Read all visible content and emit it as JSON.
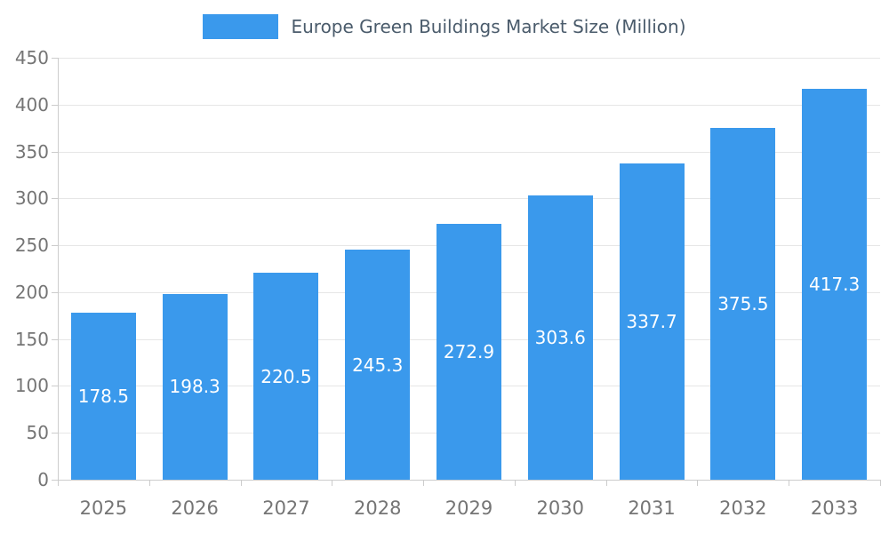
{
  "chart_data": {
    "type": "bar",
    "title": "Europe Green Buildings Market Size (Million)",
    "categories": [
      "2025",
      "2026",
      "2027",
      "2028",
      "2029",
      "2030",
      "2031",
      "2032",
      "2033"
    ],
    "values": [
      178.5,
      198.3,
      220.5,
      245.3,
      272.9,
      303.6,
      337.7,
      375.5,
      417.3
    ],
    "xlabel": "",
    "ylabel": "",
    "ylim": [
      0,
      450
    ],
    "ytick_step": 50,
    "grid": true,
    "legend_position": "top",
    "value_labels": "inside-center",
    "colors": {
      "bar": "#3A99EC",
      "title_text": "#4A5B6B",
      "axis_text": "#757575",
      "gridline": "#E6E6E6",
      "axis_line": "#CCCCCC",
      "value_label": "#FFFFFF",
      "background": "#FFFFFF"
    }
  }
}
